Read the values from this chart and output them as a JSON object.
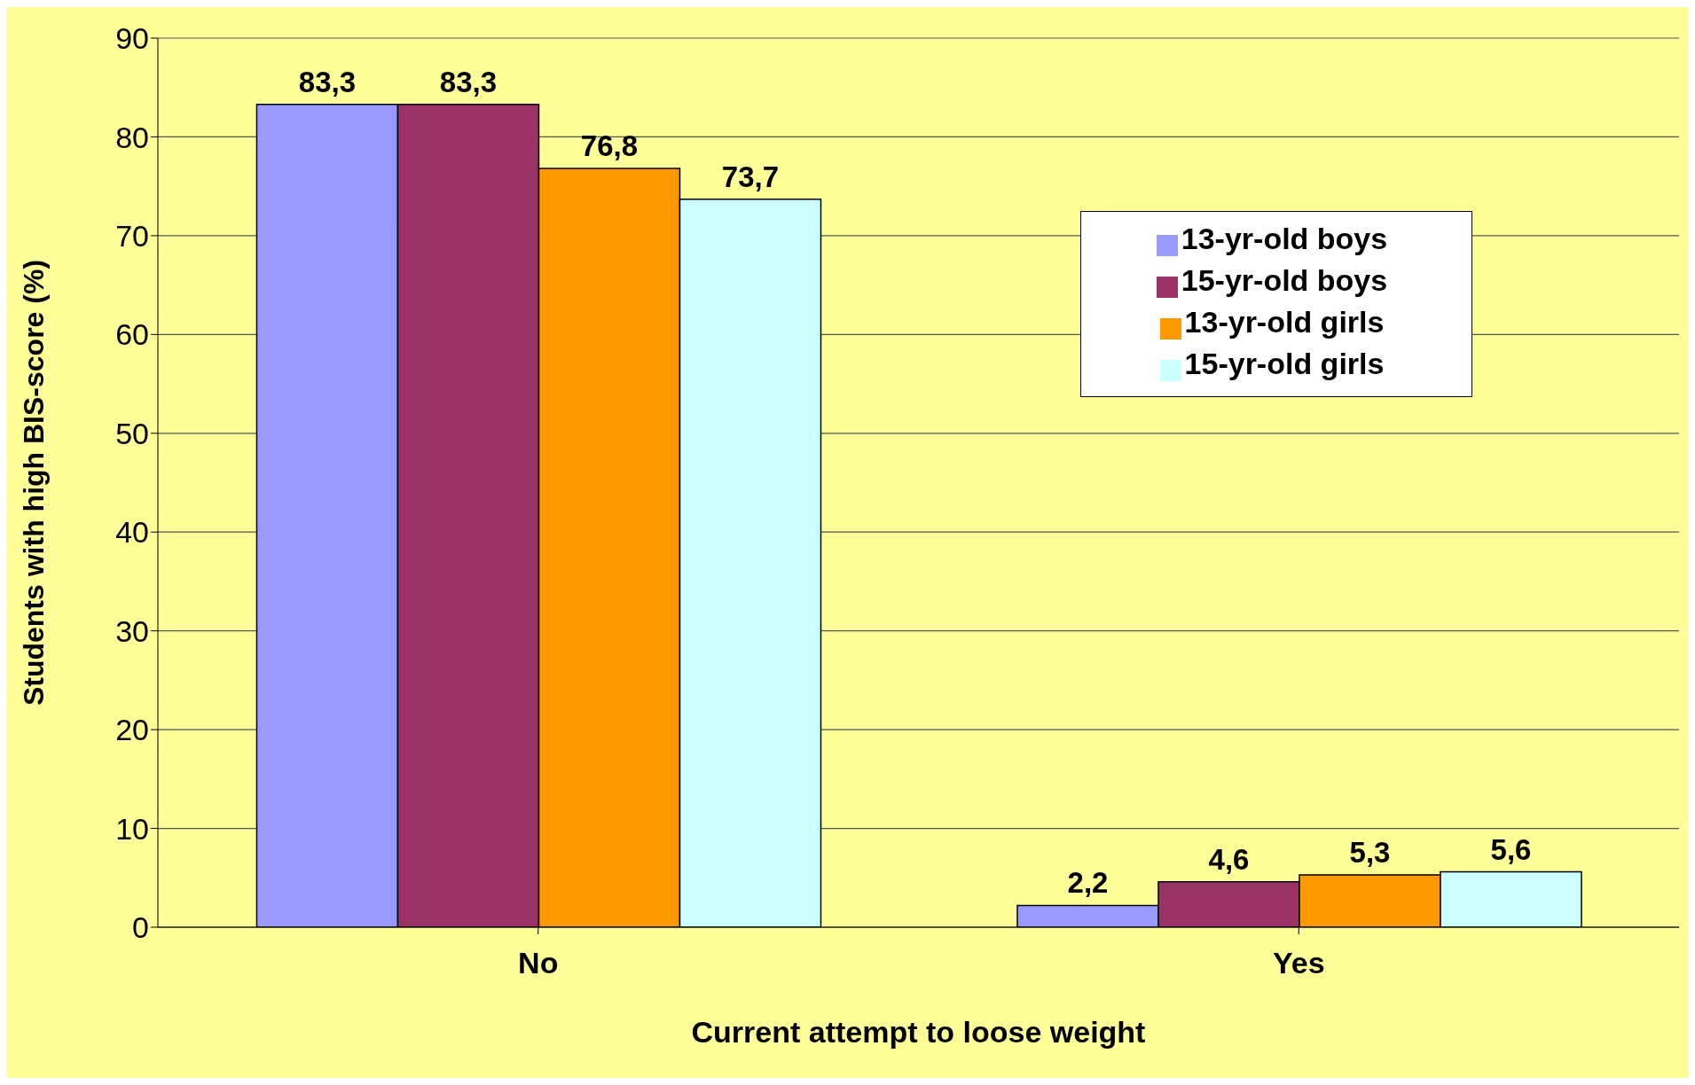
{
  "chart_data": {
    "type": "bar",
    "xlabel": "Current attempt to loose weight",
    "ylabel": "Students with high BIS-score (%)",
    "categories": [
      "No",
      "Yes"
    ],
    "series": [
      {
        "name": "13-yr-old boys",
        "color": "#9999ff",
        "values": [
          83.3,
          2.2
        ],
        "value_labels": [
          "83,3",
          "2,2"
        ]
      },
      {
        "name": "15-yr-old boys",
        "color": "#993366",
        "values": [
          83.3,
          4.6
        ],
        "value_labels": [
          "83,3",
          "4,6"
        ]
      },
      {
        "name": "13-yr-old girls",
        "color": "#ff9900",
        "values": [
          76.8,
          5.3
        ],
        "value_labels": [
          "76,8",
          "5,3"
        ]
      },
      {
        "name": "15-yr-old girls",
        "color": "#ccffff",
        "values": [
          73.7,
          5.6
        ],
        "value_labels": [
          "73,7",
          "5,6"
        ]
      }
    ],
    "ylim": [
      0,
      90
    ],
    "yticks": [
      0,
      10,
      20,
      30,
      40,
      50,
      60,
      70,
      80,
      90
    ],
    "grid": "y",
    "legend": "right"
  }
}
